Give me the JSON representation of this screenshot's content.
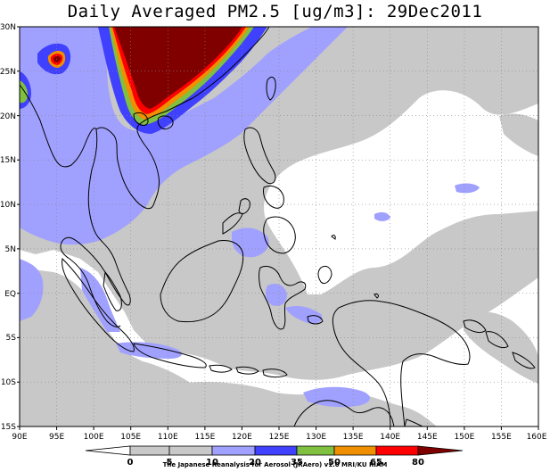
{
  "title": "Daily Averaged PM2.5 [ug/m3]: 29Dec2011",
  "credit": "The Japanese Reanalysis for Aerosol (JRAero) v1.0 MRI/KU RIAM",
  "map": {
    "lon_range": [
      90,
      160
    ],
    "lat_range": [
      -15,
      30
    ],
    "lon_ticks": [
      "90E",
      "95E",
      "100E",
      "105E",
      "110E",
      "115E",
      "120E",
      "125E",
      "130E",
      "135E",
      "140E",
      "145E",
      "150E",
      "155E",
      "160E"
    ],
    "lat_ticks": [
      "30N",
      "25N",
      "20N",
      "15N",
      "10N",
      "5N",
      "EQ",
      "5S",
      "10S",
      "15S"
    ]
  },
  "colorbar": {
    "labels": [
      "0",
      "5",
      "10",
      "20",
      "35",
      "50",
      "65",
      "80"
    ],
    "colors": [
      "#ffffff",
      "#c8c8c8",
      "#a0a0ff",
      "#4040ff",
      "#80c040",
      "#f09000",
      "#ff0000",
      "#800000"
    ],
    "units": "ug/m3"
  }
}
